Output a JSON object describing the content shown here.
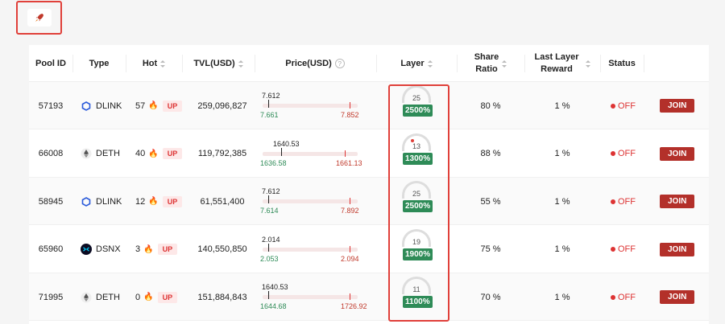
{
  "toolbar": {
    "icon": "rocket-icon"
  },
  "headers": {
    "pool_id": "Pool ID",
    "type": "Type",
    "hot": "Hot",
    "tvl": "TVL(USD)",
    "price": "Price(USD)",
    "layer": "Layer",
    "share_ratio_1": "Share",
    "share_ratio_2": "Ratio",
    "last_layer_1": "Last Layer",
    "last_layer_2": "Reward",
    "status": "Status"
  },
  "rows": [
    {
      "pool_id": "57193",
      "type": "DLINK",
      "type_icon": "dlink-icon",
      "hot": "57",
      "hot_badge": "UP",
      "tvl": "259,096,827",
      "price_cur": "7.612",
      "price_lo": "7.661",
      "price_hi": "7.852",
      "layer": "25",
      "layer_pct": "2500%",
      "share": "80 %",
      "last_reward": "1 %",
      "status": "OFF",
      "action": "JOIN"
    },
    {
      "pool_id": "66008",
      "type": "DETH",
      "type_icon": "eth-icon",
      "hot": "40",
      "hot_badge": "UP",
      "tvl": "119,792,385",
      "price_cur": "1640.53",
      "price_lo": "1636.58",
      "price_hi": "1661.13",
      "layer": "13",
      "layer_pct": "1300%",
      "share": "88 %",
      "last_reward": "1 %",
      "status": "OFF",
      "action": "JOIN"
    },
    {
      "pool_id": "58945",
      "type": "DLINK",
      "type_icon": "dlink-icon",
      "hot": "12",
      "hot_badge": "UP",
      "tvl": "61,551,400",
      "price_cur": "7.612",
      "price_lo": "7.614",
      "price_hi": "7.892",
      "layer": "25",
      "layer_pct": "2500%",
      "share": "55 %",
      "last_reward": "1 %",
      "status": "OFF",
      "action": "JOIN"
    },
    {
      "pool_id": "65960",
      "type": "DSNX",
      "type_icon": "snx-icon",
      "hot": "3",
      "hot_badge": "UP",
      "tvl": "140,550,850",
      "price_cur": "2.014",
      "price_lo": "2.053",
      "price_hi": "2.094",
      "layer": "19",
      "layer_pct": "1900%",
      "share": "75 %",
      "last_reward": "1 %",
      "status": "OFF",
      "action": "JOIN"
    },
    {
      "pool_id": "71995",
      "type": "DETH",
      "type_icon": "eth-icon",
      "hot": "0",
      "hot_badge": "UP",
      "tvl": "151,884,843",
      "price_cur": "1640.53",
      "price_lo": "1644.68",
      "price_hi": "1726.92",
      "layer": "11",
      "layer_pct": "1100%",
      "share": "70 %",
      "last_reward": "1 %",
      "status": "OFF",
      "action": "JOIN"
    }
  ],
  "colors": {
    "accent": "#b3302a",
    "up": "#2e8b57",
    "down": "#d33"
  }
}
